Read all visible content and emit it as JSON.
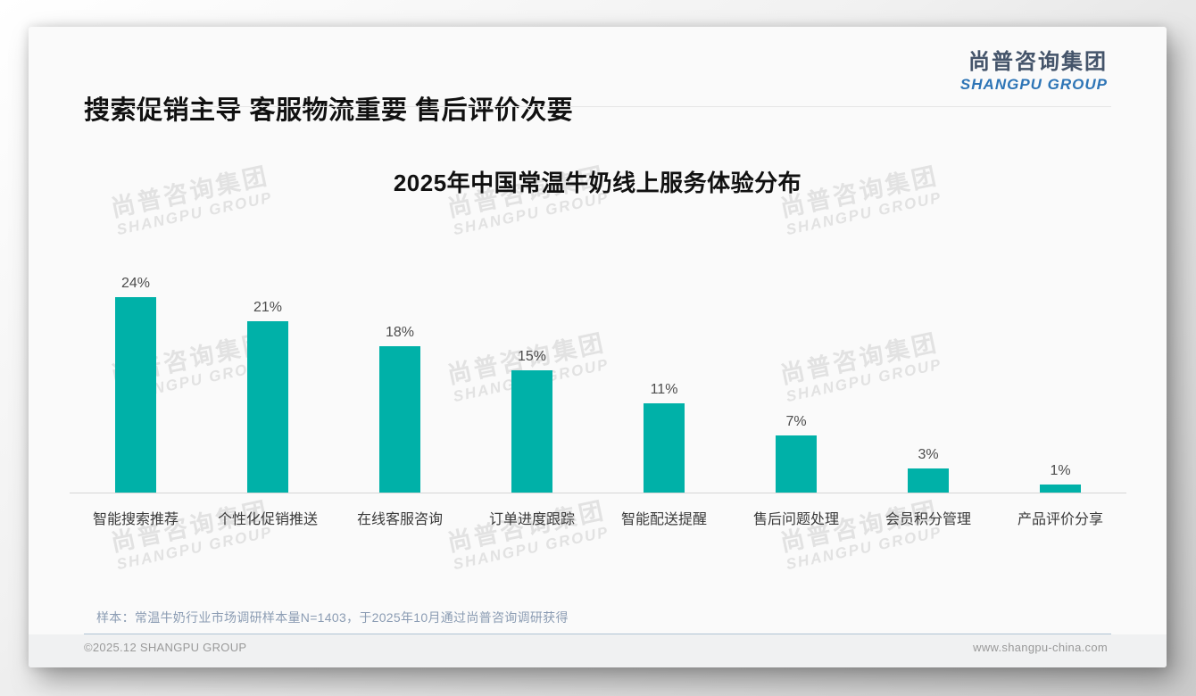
{
  "page": {
    "header_title": "搜索促销主导 客服物流重要 售后评价次要",
    "logo": {
      "cn": "尚普咨询集团",
      "en": "SHANGPU GROUP"
    },
    "watermark": {
      "line1": "尚普咨询集团",
      "line2": "SHANGPU GROUP"
    },
    "note": "样本：常温牛奶行业市场调研样本量N=1403，于2025年10月通过尚普咨询调研获得",
    "footer": {
      "left": "©2025.12 SHANGPU GROUP",
      "right": "www.shangpu-china.com"
    }
  },
  "colors": {
    "bar": "#00b1a8",
    "logo_cn": "#44546a",
    "logo_en": "#2e75b6",
    "note_text": "#8b9cb3",
    "footer_divider": "#b0c4d4"
  },
  "chart_data": {
    "type": "bar",
    "title": "2025年中国常温牛奶线上服务体验分布",
    "categories": [
      "智能搜索推荐",
      "个性化促销推送",
      "在线客服咨询",
      "订单进度跟踪",
      "智能配送提醒",
      "售后问题处理",
      "会员积分管理",
      "产品评价分享"
    ],
    "values": [
      24,
      21,
      18,
      15,
      11,
      7,
      3,
      1
    ],
    "value_labels": [
      "24%",
      "21%",
      "18%",
      "15%",
      "11%",
      "7%",
      "3%",
      "1%"
    ],
    "unit": "%",
    "xlabel": "",
    "ylabel": "",
    "ylim": [
      0,
      25
    ],
    "grid": false,
    "legend": false,
    "y_axis_visible": false,
    "bar_color": "#00b1a8"
  }
}
